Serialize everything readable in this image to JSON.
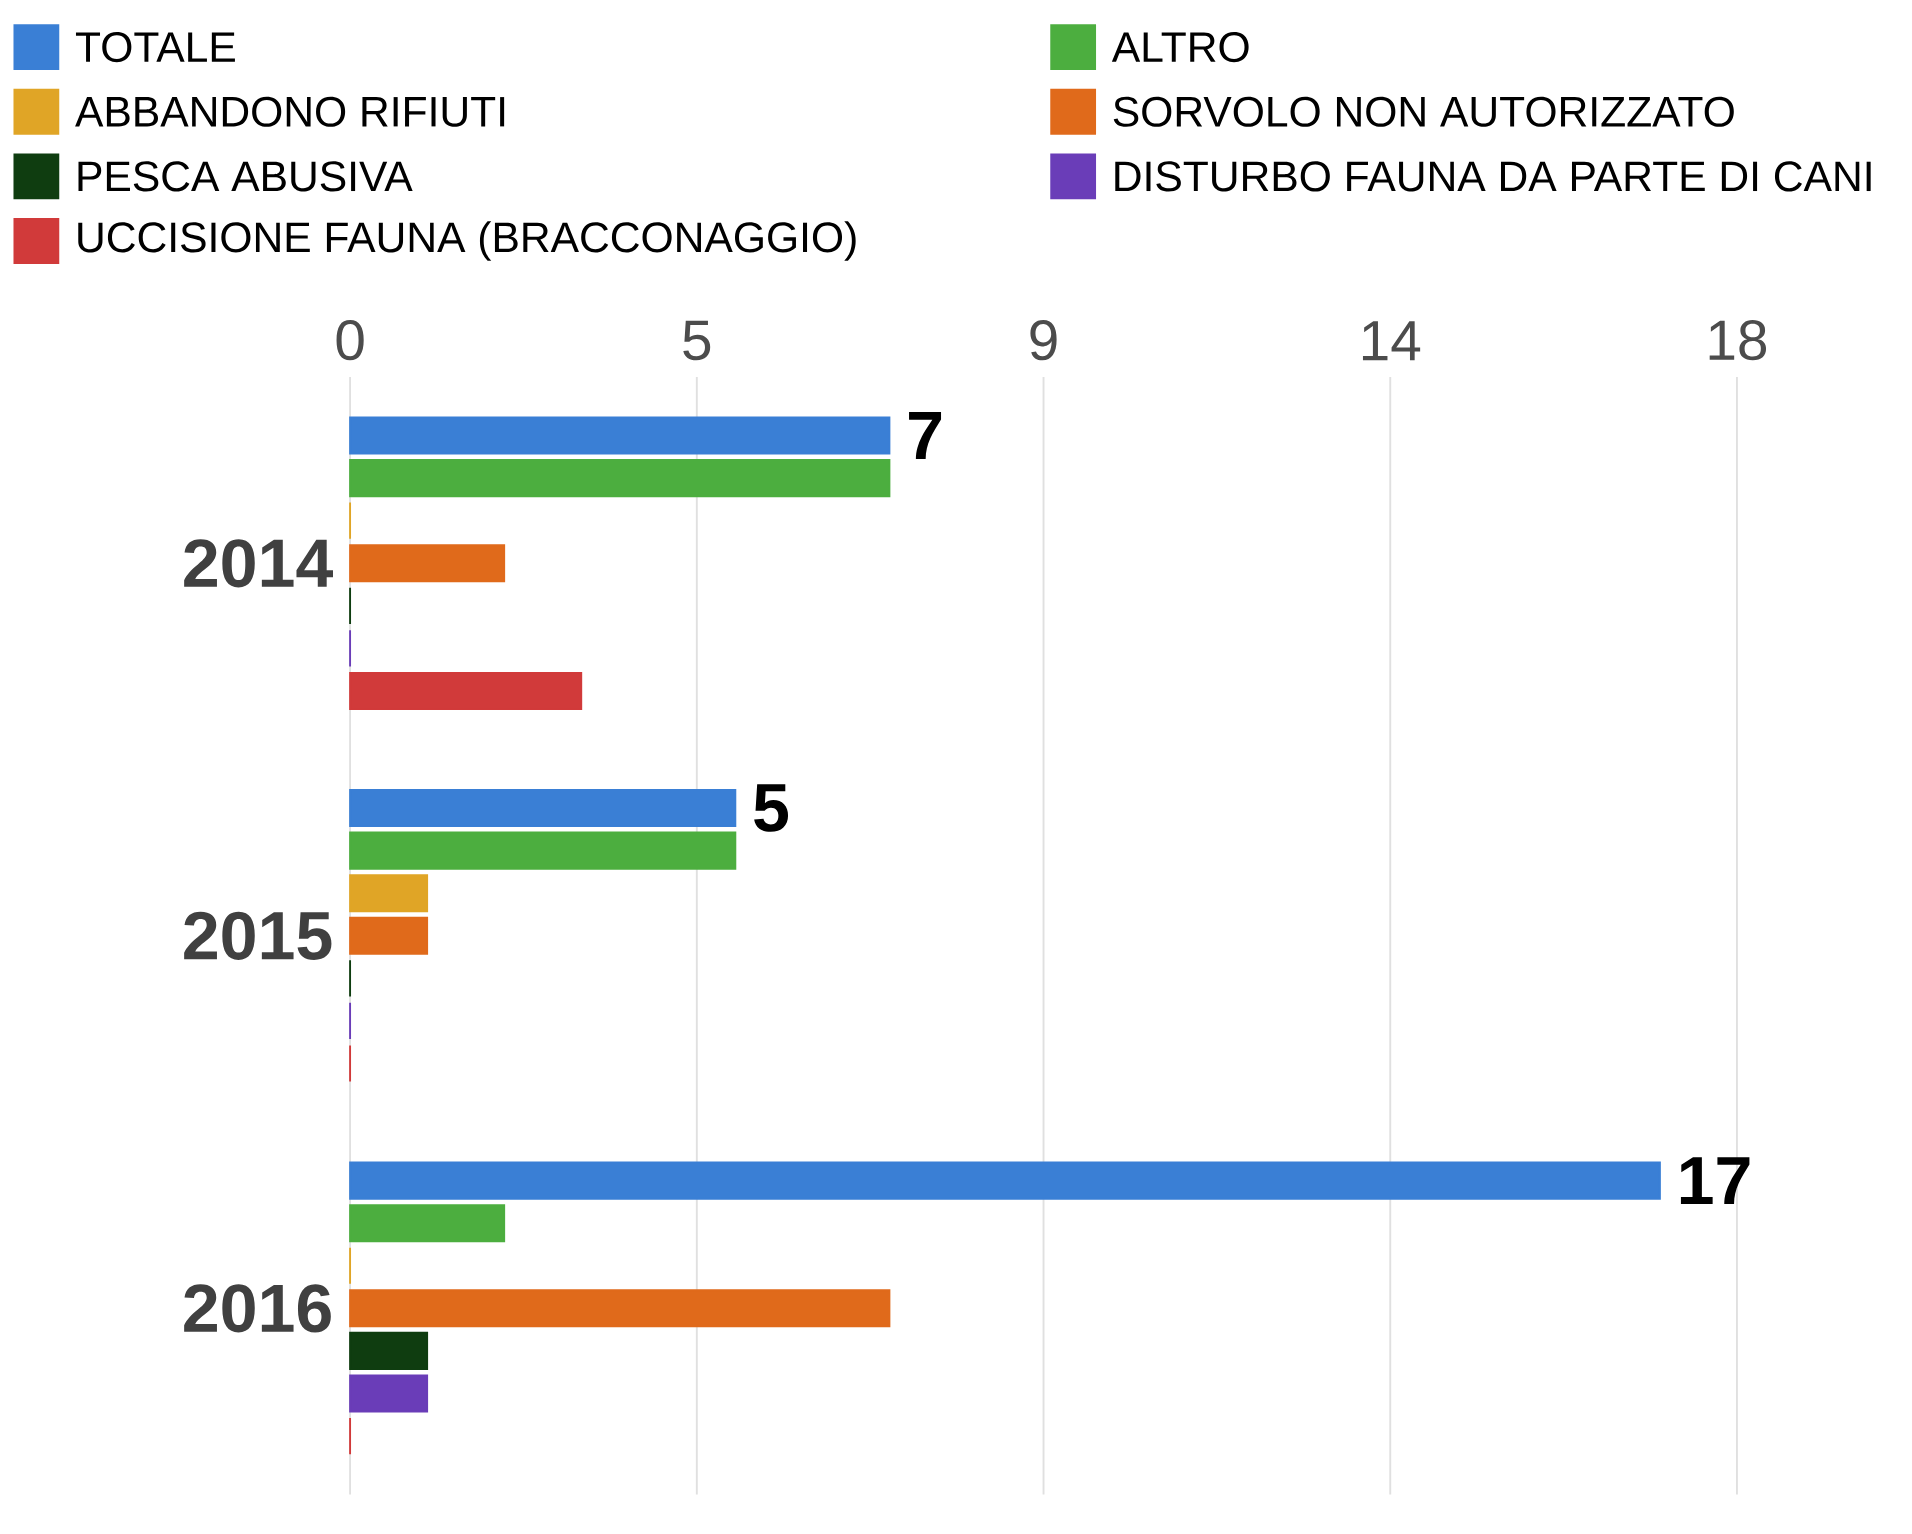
{
  "chart_data": {
    "type": "bar",
    "orientation": "horizontal",
    "categories": [
      "2014",
      "2015",
      "2016"
    ],
    "series": [
      {
        "name": "TOTALE",
        "color": "#3a7fd5",
        "values": [
          7,
          5,
          17
        ],
        "value_labels": [
          "7",
          "5",
          "17"
        ]
      },
      {
        "name": "ALTRO",
        "color": "#4cae3f",
        "values": [
          7,
          5,
          2
        ]
      },
      {
        "name": "ABBANDONO RIFIUTI",
        "color": "#e0a526",
        "values": [
          0,
          1,
          0
        ]
      },
      {
        "name": "SORVOLO NON AUTORIZZATO",
        "color": "#e06a1b",
        "values": [
          2,
          1,
          7
        ]
      },
      {
        "name": "PESCA ABUSIVA",
        "color": "#0f3d10",
        "values": [
          0,
          0,
          1
        ]
      },
      {
        "name": "DISTURBO FAUNA DA PARTE DI CANI",
        "color": "#6a3db8",
        "values": [
          0,
          0,
          1
        ]
      },
      {
        "name": "UCCISIONE FAUNA (BRACCONAGGIO)",
        "color": "#d13a3a",
        "values": [
          3,
          0,
          0
        ]
      }
    ],
    "xlim": [
      0,
      18
    ],
    "xticks": [
      0,
      {
        "value": 4.5,
        "label": "5"
      },
      9,
      {
        "value": 13.5,
        "label": "14"
      },
      18
    ],
    "grid": "x",
    "legend": "top"
  }
}
